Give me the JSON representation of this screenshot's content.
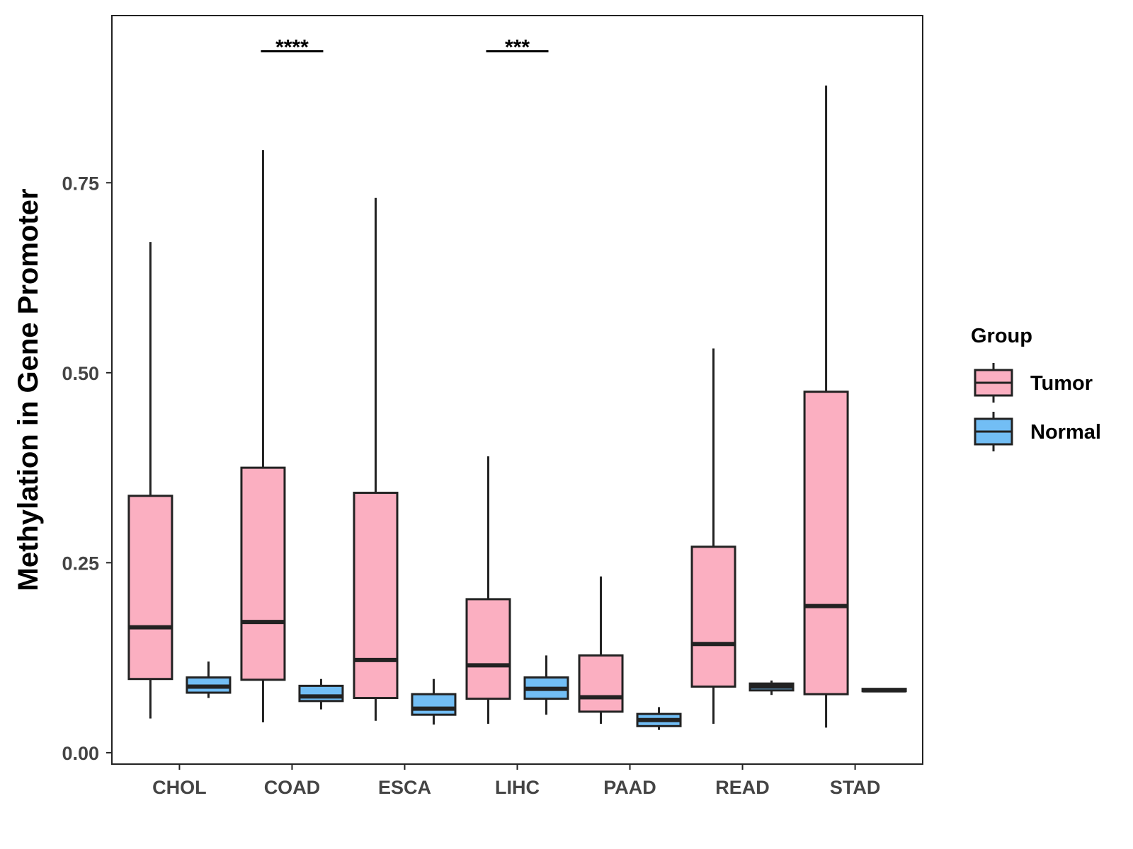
{
  "chart_data": {
    "type": "boxplot",
    "title": "",
    "xlabel": "",
    "ylabel": "Methylation in Gene Promoter",
    "ylim": [
      -0.015,
      0.97
    ],
    "yticks": [
      0.0,
      0.25,
      0.5,
      0.75
    ],
    "ytick_labels": [
      "0.00",
      "0.25",
      "0.50",
      "0.75"
    ],
    "categories": [
      "CHOL",
      "COAD",
      "ESCA",
      "LIHC",
      "PAAD",
      "READ",
      "STAD"
    ],
    "legend": {
      "title": "Group",
      "position": "right",
      "entries": [
        "Tumor",
        "Normal"
      ]
    },
    "colors": {
      "Tumor": "#FBAFC1",
      "Normal": "#72BEF5",
      "outline": "#222222"
    },
    "series": [
      {
        "name": "Tumor",
        "boxes": [
          {
            "category": "CHOL",
            "min": 0.045,
            "q1": 0.097,
            "median": 0.165,
            "q3": 0.338,
            "max": 0.672
          },
          {
            "category": "COAD",
            "min": 0.04,
            "q1": 0.096,
            "median": 0.172,
            "q3": 0.375,
            "max": 0.793
          },
          {
            "category": "ESCA",
            "min": 0.042,
            "q1": 0.072,
            "median": 0.122,
            "q3": 0.342,
            "max": 0.73
          },
          {
            "category": "LIHC",
            "min": 0.038,
            "q1": 0.071,
            "median": 0.115,
            "q3": 0.202,
            "max": 0.39
          },
          {
            "category": "PAAD",
            "min": 0.038,
            "q1": 0.054,
            "median": 0.073,
            "q3": 0.128,
            "max": 0.232
          },
          {
            "category": "READ",
            "min": 0.038,
            "q1": 0.087,
            "median": 0.143,
            "q3": 0.271,
            "max": 0.532
          },
          {
            "category": "STAD",
            "min": 0.033,
            "q1": 0.077,
            "median": 0.193,
            "q3": 0.475,
            "max": 0.878
          }
        ]
      },
      {
        "name": "Normal",
        "boxes": [
          {
            "category": "CHOL",
            "min": 0.072,
            "q1": 0.079,
            "median": 0.087,
            "q3": 0.099,
            "max": 0.12
          },
          {
            "category": "COAD",
            "min": 0.057,
            "q1": 0.068,
            "median": 0.074,
            "q3": 0.088,
            "max": 0.097
          },
          {
            "category": "ESCA",
            "min": 0.037,
            "q1": 0.05,
            "median": 0.058,
            "q3": 0.077,
            "max": 0.097
          },
          {
            "category": "LIHC",
            "min": 0.05,
            "q1": 0.071,
            "median": 0.084,
            "q3": 0.099,
            "max": 0.128
          },
          {
            "category": "PAAD",
            "min": 0.03,
            "q1": 0.035,
            "median": 0.043,
            "q3": 0.051,
            "max": 0.06
          },
          {
            "category": "READ",
            "min": 0.076,
            "q1": 0.082,
            "median": 0.087,
            "q3": 0.091,
            "max": 0.095
          },
          {
            "category": "STAD",
            "min": 0.08,
            "q1": 0.081,
            "median": 0.082,
            "q3": 0.084,
            "max": 0.085
          }
        ]
      }
    ],
    "annotations": [
      {
        "category": "COAD",
        "label": "****",
        "y": 0.923
      },
      {
        "category": "LIHC",
        "label": "***",
        "y": 0.923
      }
    ]
  }
}
